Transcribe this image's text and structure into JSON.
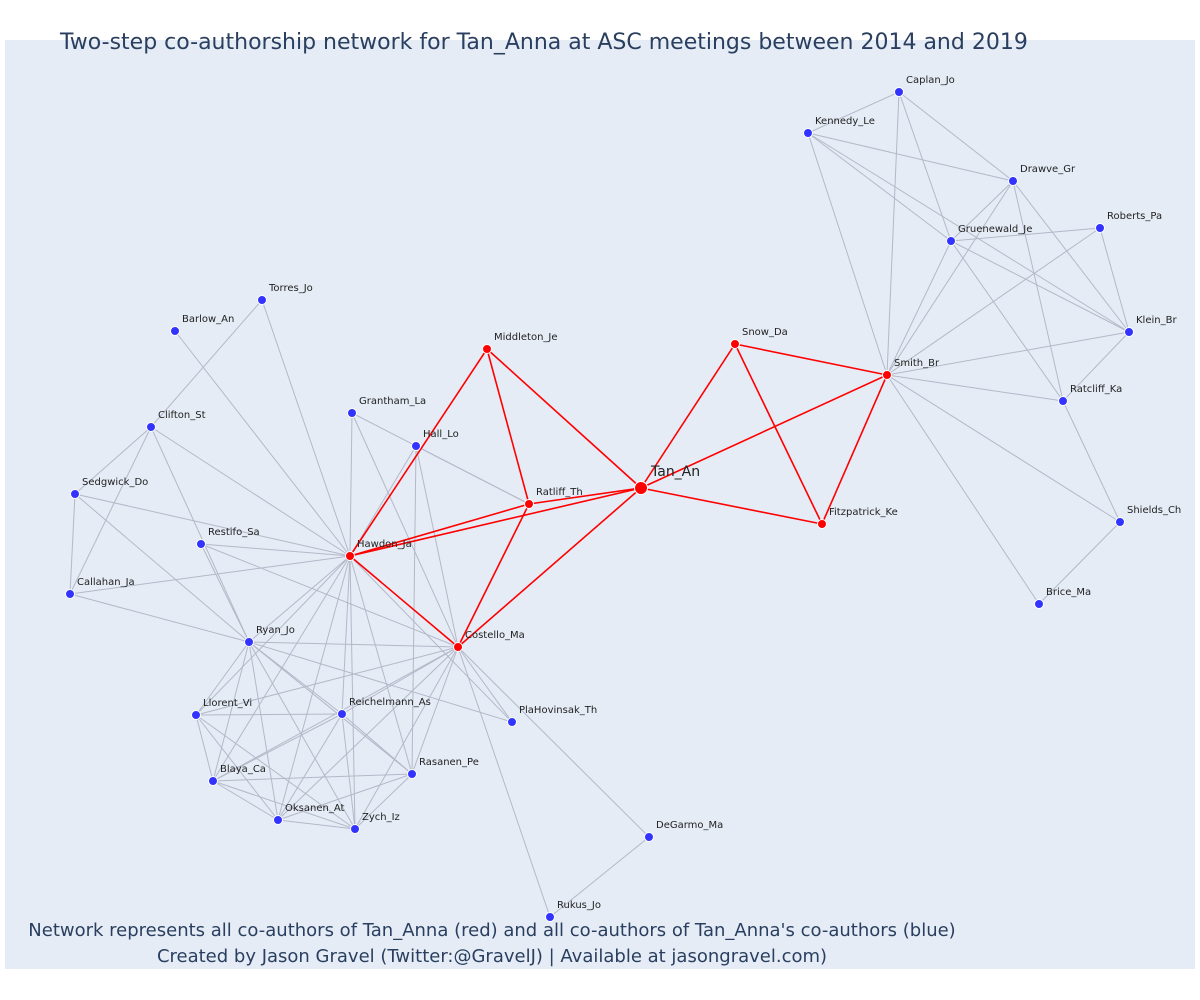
{
  "title": "Two-step co-authorship network for Tan_Anna at ASC meetings between 2014 and 2019",
  "footer": {
    "line1": "Network represents all co-authors of Tan_Anna (red) and all co-authors of Tan_Anna's co-authors (blue)",
    "line2": "Created by Jason Gravel (Twitter:@GravelJ) | Available at jasongravel.com)"
  },
  "colors": {
    "first_degree": "#ff0000",
    "second_degree": "#3333ff",
    "edge": "#b4b8c8",
    "background": "#e5ecf6"
  },
  "nodes": [
    {
      "id": "Tan_An",
      "group": "center"
    },
    {
      "id": "Middleton_Je",
      "group": "first"
    },
    {
      "id": "Snow_Da",
      "group": "first"
    },
    {
      "id": "Smith_Br",
      "group": "first"
    },
    {
      "id": "Ratliff_Th",
      "group": "first"
    },
    {
      "id": "Fitzpatrick_Ke",
      "group": "first"
    },
    {
      "id": "Hawdon_Ja",
      "group": "first"
    },
    {
      "id": "Costello_Ma",
      "group": "first"
    },
    {
      "id": "Caplan_Jo",
      "group": "second"
    },
    {
      "id": "Kennedy_Le",
      "group": "second"
    },
    {
      "id": "Drawve_Gr",
      "group": "second"
    },
    {
      "id": "Roberts_Pa",
      "group": "second"
    },
    {
      "id": "Gruenewald_Je",
      "group": "second"
    },
    {
      "id": "Klein_Br",
      "group": "second"
    },
    {
      "id": "Ratcliff_Ka",
      "group": "second"
    },
    {
      "id": "Shields_Ch",
      "group": "second"
    },
    {
      "id": "Brice_Ma",
      "group": "second"
    },
    {
      "id": "Torres_Jo",
      "group": "second"
    },
    {
      "id": "Barlow_An",
      "group": "second"
    },
    {
      "id": "Grantham_La",
      "group": "second"
    },
    {
      "id": "Hall_Lo",
      "group": "second"
    },
    {
      "id": "Clifton_St",
      "group": "second"
    },
    {
      "id": "Sedgwick_Do",
      "group": "second"
    },
    {
      "id": "Restifo_Sa",
      "group": "second"
    },
    {
      "id": "Callahan_Ja",
      "group": "second"
    },
    {
      "id": "Ryan_Jo",
      "group": "second"
    },
    {
      "id": "Llorent_Vi",
      "group": "second"
    },
    {
      "id": "Reichelmann_As",
      "group": "second"
    },
    {
      "id": "PlaHovinsak_Th",
      "group": "second"
    },
    {
      "id": "Blaya_Ca",
      "group": "second"
    },
    {
      "id": "Rasanen_Pe",
      "group": "second"
    },
    {
      "id": "Oksanen_At",
      "group": "second"
    },
    {
      "id": "Zych_Iz",
      "group": "second"
    },
    {
      "id": "DeGarmo_Ma",
      "group": "second"
    },
    {
      "id": "Rukus_Jo",
      "group": "second"
    }
  ],
  "edges": [
    [
      "Tan_An",
      "Middleton_Je"
    ],
    [
      "Tan_An",
      "Snow_Da"
    ],
    [
      "Tan_An",
      "Smith_Br"
    ],
    [
      "Tan_An",
      "Ratliff_Th"
    ],
    [
      "Tan_An",
      "Fitzpatrick_Ke"
    ],
    [
      "Tan_An",
      "Hawdon_Ja"
    ],
    [
      "Tan_An",
      "Costello_Ma"
    ],
    [
      "Middleton_Je",
      "Ratliff_Th"
    ],
    [
      "Middleton_Je",
      "Hawdon_Ja"
    ],
    [
      "Snow_Da",
      "Smith_Br"
    ],
    [
      "Snow_Da",
      "Fitzpatrick_Ke"
    ],
    [
      "Smith_Br",
      "Fitzpatrick_Ke"
    ],
    [
      "Ratliff_Th",
      "Hawdon_Ja"
    ],
    [
      "Ratliff_Th",
      "Costello_Ma"
    ],
    [
      "Hawdon_Ja",
      "Costello_Ma"
    ],
    [
      "Caplan_Jo",
      "Kennedy_Le"
    ],
    [
      "Caplan_Jo",
      "Drawve_Gr"
    ],
    [
      "Caplan_Jo",
      "Gruenewald_Je"
    ],
    [
      "Caplan_Jo",
      "Smith_Br"
    ],
    [
      "Kennedy_Le",
      "Drawve_Gr"
    ],
    [
      "Kennedy_Le",
      "Gruenewald_Je"
    ],
    [
      "Kennedy_Le",
      "Smith_Br"
    ],
    [
      "Kennedy_Le",
      "Klein_Br"
    ],
    [
      "Drawve_Gr",
      "Gruenewald_Je"
    ],
    [
      "Drawve_Gr",
      "Smith_Br"
    ],
    [
      "Drawve_Gr",
      "Klein_Br"
    ],
    [
      "Drawve_Gr",
      "Ratcliff_Ka"
    ],
    [
      "Gruenewald_Je",
      "Roberts_Pa"
    ],
    [
      "Gruenewald_Je",
      "Smith_Br"
    ],
    [
      "Gruenewald_Je",
      "Klein_Br"
    ],
    [
      "Gruenewald_Je",
      "Ratcliff_Ka"
    ],
    [
      "Roberts_Pa",
      "Smith_Br"
    ],
    [
      "Roberts_Pa",
      "Klein_Br"
    ],
    [
      "Klein_Br",
      "Smith_Br"
    ],
    [
      "Klein_Br",
      "Ratcliff_Ka"
    ],
    [
      "Smith_Br",
      "Ratcliff_Ka"
    ],
    [
      "Smith_Br",
      "Shields_Ch"
    ],
    [
      "Smith_Br",
      "Brice_Ma"
    ],
    [
      "Ratcliff_Ka",
      "Shields_Ch"
    ],
    [
      "Shields_Ch",
      "Brice_Ma"
    ],
    [
      "Torres_Jo",
      "Hawdon_Ja"
    ],
    [
      "Torres_Jo",
      "Clifton_St"
    ],
    [
      "Barlow_An",
      "Hawdon_Ja"
    ],
    [
      "Grantham_La",
      "Hawdon_Ja"
    ],
    [
      "Grantham_La",
      "Costello_Ma"
    ],
    [
      "Grantham_La",
      "Ratliff_Th"
    ],
    [
      "Hall_Lo",
      "Hawdon_Ja"
    ],
    [
      "Hall_Lo",
      "Ratliff_Th"
    ],
    [
      "Hall_Lo",
      "Costello_Ma"
    ],
    [
      "Hall_Lo",
      "Rasanen_Pe"
    ],
    [
      "Clifton_St",
      "Sedgwick_Do"
    ],
    [
      "Clifton_St",
      "Callahan_Ja"
    ],
    [
      "Clifton_St",
      "Hawdon_Ja"
    ],
    [
      "Clifton_St",
      "Ryan_Jo"
    ],
    [
      "Sedgwick_Do",
      "Callahan_Ja"
    ],
    [
      "Sedgwick_Do",
      "Hawdon_Ja"
    ],
    [
      "Sedgwick_Do",
      "Ryan_Jo"
    ],
    [
      "Restifo_Sa",
      "Hawdon_Ja"
    ],
    [
      "Restifo_Sa",
      "Costello_Ma"
    ],
    [
      "Restifo_Sa",
      "Ryan_Jo"
    ],
    [
      "Callahan_Ja",
      "Hawdon_Ja"
    ],
    [
      "Callahan_Ja",
      "Ryan_Jo"
    ],
    [
      "Ryan_Jo",
      "Hawdon_Ja"
    ],
    [
      "Ryan_Jo",
      "Costello_Ma"
    ],
    [
      "Ryan_Jo",
      "Llorent_Vi"
    ],
    [
      "Ryan_Jo",
      "Reichelmann_As"
    ],
    [
      "Ryan_Jo",
      "Blaya_Ca"
    ],
    [
      "Ryan_Jo",
      "Oksanen_At"
    ],
    [
      "Ryan_Jo",
      "Zych_Iz"
    ],
    [
      "Ryan_Jo",
      "Rasanen_Pe"
    ],
    [
      "Ryan_Jo",
      "PlaHovinsak_Th"
    ],
    [
      "Llorent_Vi",
      "Hawdon_Ja"
    ],
    [
      "Llorent_Vi",
      "Costello_Ma"
    ],
    [
      "Llorent_Vi",
      "Blaya_Ca"
    ],
    [
      "Llorent_Vi",
      "Oksanen_At"
    ],
    [
      "Llorent_Vi",
      "Zych_Iz"
    ],
    [
      "Llorent_Vi",
      "Reichelmann_As"
    ],
    [
      "Reichelmann_As",
      "Hawdon_Ja"
    ],
    [
      "Reichelmann_As",
      "Costello_Ma"
    ],
    [
      "Reichelmann_As",
      "Blaya_Ca"
    ],
    [
      "Reichelmann_As",
      "Oksanen_At"
    ],
    [
      "Reichelmann_As",
      "Zych_Iz"
    ],
    [
      "Reichelmann_As",
      "Rasanen_Pe"
    ],
    [
      "Blaya_Ca",
      "Hawdon_Ja"
    ],
    [
      "Blaya_Ca",
      "Costello_Ma"
    ],
    [
      "Blaya_Ca",
      "Oksanen_At"
    ],
    [
      "Blaya_Ca",
      "Zych_Iz"
    ],
    [
      "Blaya_Ca",
      "Rasanen_Pe"
    ],
    [
      "Oksanen_At",
      "Hawdon_Ja"
    ],
    [
      "Oksanen_At",
      "Costello_Ma"
    ],
    [
      "Oksanen_At",
      "Zych_Iz"
    ],
    [
      "Oksanen_At",
      "Rasanen_Pe"
    ],
    [
      "Zych_Iz",
      "Hawdon_Ja"
    ],
    [
      "Zych_Iz",
      "Costello_Ma"
    ],
    [
      "Zych_Iz",
      "Rasanen_Pe"
    ],
    [
      "Rasanen_Pe",
      "Hawdon_Ja"
    ],
    [
      "Rasanen_Pe",
      "Costello_Ma"
    ],
    [
      "PlaHovinsak_Th",
      "Costello_Ma"
    ],
    [
      "PlaHovinsak_Th",
      "Hawdon_Ja"
    ],
    [
      "DeGarmo_Ma",
      "Costello_Ma"
    ],
    [
      "DeGarmo_Ma",
      "Rukus_Jo"
    ],
    [
      "Rukus_Jo",
      "Costello_Ma"
    ]
  ]
}
